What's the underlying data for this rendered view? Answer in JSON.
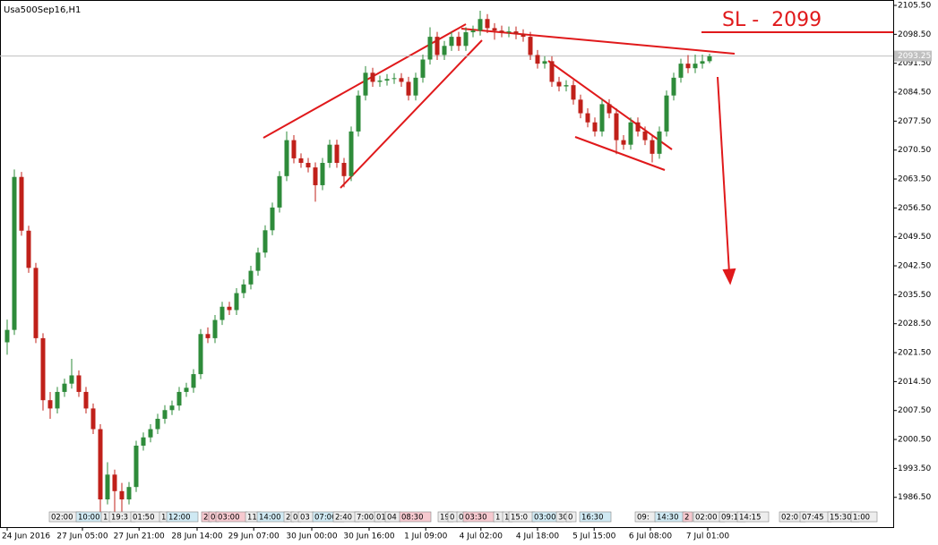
{
  "chart_data": {
    "type": "candlestick",
    "title": "Usa500Sep16,H1",
    "ylim": [
      1979.3,
      2106.8
    ],
    "yticks": [
      {
        "value": 1986.5,
        "label": "1986.50"
      },
      {
        "value": 1993.5,
        "label": "1993.50"
      },
      {
        "value": 2000.5,
        "label": "2000.50"
      },
      {
        "value": 2007.5,
        "label": "2007.50"
      },
      {
        "value": 2014.5,
        "label": "2014.50"
      },
      {
        "value": 2021.5,
        "label": "2021.50"
      },
      {
        "value": 2028.5,
        "label": "2028.50"
      },
      {
        "value": 2035.5,
        "label": "2035.50"
      },
      {
        "value": 2042.5,
        "label": "2042.50"
      },
      {
        "value": 2049.5,
        "label": "2049.50"
      },
      {
        "value": 2056.5,
        "label": "2056.50"
      },
      {
        "value": 2063.5,
        "label": "2063.50"
      },
      {
        "value": 2070.5,
        "label": "2070.50"
      },
      {
        "value": 2077.5,
        "label": "2077.50"
      },
      {
        "value": 2084.5,
        "label": "2084.50"
      },
      {
        "value": 2091.5,
        "label": "2091.50"
      },
      {
        "value": 2098.5,
        "label": "2098.50"
      },
      {
        "value": 2105.5,
        "label": "2105.50"
      }
    ],
    "xticks": [
      {
        "value": 0,
        "label": "24 Jun 2016"
      },
      {
        "value": 10.5,
        "label": "27 Jun 05:00"
      },
      {
        "value": 18.4,
        "label": "27 Jun 21:00"
      },
      {
        "value": 26.5,
        "label": "28 Jun 14:00"
      },
      {
        "value": 34.4,
        "label": "29 Jun 07:00"
      },
      {
        "value": 42.5,
        "label": "30 Jun 00:00"
      },
      {
        "value": 50.5,
        "label": "30 Jun 16:00"
      },
      {
        "value": 58.4,
        "label": "1 Jul 09:00"
      },
      {
        "value": 66.1,
        "label": "4 Jul 02:00"
      },
      {
        "value": 74,
        "label": "4 Jul 18:00"
      },
      {
        "value": 81.9,
        "label": "5 Jul 15:00"
      },
      {
        "value": 89.75,
        "label": "6 Jul 08:00"
      },
      {
        "value": 97.75,
        "label": "7 Jul 01:00"
      }
    ],
    "up_color": "#2e8b3a",
    "down_color": "#c0201a",
    "open": [
      2024,
      2027,
      2064,
      2051,
      2042,
      2025,
      2010,
      2008,
      2012,
      2014,
      2016,
      2012,
      2008,
      2003,
      1986,
      1992,
      1988,
      1986,
      1989,
      1999,
      2001,
      2003,
      2005.5,
      2007.6,
      2008.7,
      2012,
      2013,
      2016.3,
      2026,
      2025,
      2029.4,
      2032.6,
      2031.8,
      2035.9,
      2038,
      2041.3,
      2045.7,
      2051.1,
      2056.6,
      2064.2,
      2072.9,
      2068.5,
      2067.4,
      2066.3,
      2062,
      2067.4,
      2071.8,
      2067.4,
      2064.2,
      2075,
      2083.7,
      2089.2,
      2087,
      2087.3,
      2087.7,
      2087.9,
      2087,
      2083.7,
      2088,
      2092.4,
      2097.9,
      2093.5,
      2095.7,
      2097.9,
      2095.7,
      2099,
      2099.4,
      2102.2,
      2100,
      2099.4,
      2099,
      2099.2,
      2098.5,
      2097.9,
      2093.5,
      2091.4,
      2092,
      2087,
      2085.9,
      2086.2,
      2082.7,
      2079.4,
      2077.2,
      2075,
      2081.6,
      2079.4,
      2072.9,
      2071.8,
      2077.2,
      2075,
      2072.9,
      2069.6,
      2075,
      2083.7,
      2088,
      2091.4,
      2090.3,
      2091.4,
      2092
    ],
    "high": [
      2029.5,
      2065.8,
      2065.2,
      2052.2,
      2043.2,
      2026.2,
      2012,
      2013.2,
      2015.2,
      2020,
      2017.2,
      2013.2,
      2009.2,
      2004.2,
      1995,
      1993.2,
      1990,
      1990.2,
      2000.2,
      2002.2,
      2004.2,
      2006.7,
      2008.8,
      2009.9,
      2013.2,
      2014.2,
      2017.5,
      2027.2,
      2027.6,
      2030.6,
      2033.8,
      2033.8,
      2037.1,
      2039.2,
      2042.5,
      2046.9,
      2052.3,
      2057.8,
      2065.4,
      2075,
      2074.1,
      2069.7,
      2068.6,
      2067.5,
      2068.6,
      2073,
      2073,
      2068.6,
      2076.2,
      2084.9,
      2090.8,
      2090.4,
      2088.5,
      2088.9,
      2089.1,
      2089.1,
      2088.2,
      2089.2,
      2093.6,
      2100.2,
      2099.1,
      2096.9,
      2099.1,
      2099.1,
      2100.2,
      2100.6,
      2104.2,
      2103.4,
      2101.2,
      2100.6,
      2100.4,
      2100.4,
      2099.7,
      2099.1,
      2094.7,
      2093.2,
      2093.2,
      2088.2,
      2087.4,
      2087.4,
      2083.9,
      2080.6,
      2078.4,
      2082.8,
      2082.8,
      2080.6,
      2074.1,
      2078.4,
      2078.4,
      2076.2,
      2074.1,
      2076.2,
      2084.9,
      2089.2,
      2092.6,
      2093.5,
      2093.6,
      2093.6,
      2093.8
    ],
    "low": [
      2021,
      2025.8,
      2049.8,
      2040.8,
      2023.8,
      2007.5,
      2005.5,
      2006.8,
      2010.8,
      2012.8,
      2010.8,
      2006.8,
      2001.8,
      1981.5,
      1984.8,
      1982.5,
      1983,
      1984.8,
      1987.8,
      1997.8,
      1999.8,
      2001.8,
      2004.3,
      2006.4,
      2007.5,
      2010.8,
      2011.8,
      2015.1,
      2023.8,
      2023.8,
      2028.2,
      2030.6,
      2030.6,
      2034.7,
      2036.8,
      2040.1,
      2044.5,
      2049.9,
      2055.4,
      2063,
      2067.3,
      2066.2,
      2065.1,
      2058,
      2060.8,
      2066.2,
      2066.2,
      2061.5,
      2063,
      2073.8,
      2082.5,
      2085.8,
      2085.8,
      2086.1,
      2086.5,
      2085.8,
      2082.5,
      2082.5,
      2086.8,
      2091.2,
      2092.3,
      2092.3,
      2094.5,
      2094.5,
      2094.5,
      2097.8,
      2098.2,
      2098.8,
      2097.2,
      2097.8,
      2097.8,
      2097.3,
      2096.7,
      2092.3,
      2090.2,
      2090.2,
      2085.8,
      2084.7,
      2084.7,
      2081.5,
      2078.2,
      2076,
      2073.8,
      2073.8,
      2078.2,
      2069.5,
      2070.6,
      2070.6,
      2073.8,
      2071.7,
      2067.5,
      2068.4,
      2073.8,
      2082.5,
      2086.8,
      2089.1,
      2089.1,
      2090.2,
      2091.5
    ],
    "close": [
      2027,
      2064,
      2051,
      2042,
      2025,
      2010,
      2008,
      2012,
      2014,
      2016,
      2012,
      2008,
      2003,
      1986,
      1992,
      1988,
      1986,
      1989,
      1999,
      2001,
      2003,
      2005.5,
      2007.6,
      2008.7,
      2012,
      2013,
      2016.3,
      2026,
      2025,
      2029.4,
      2032.6,
      2031.8,
      2035.9,
      2038,
      2041.3,
      2045.7,
      2051.1,
      2056.6,
      2064.2,
      2072.9,
      2068.5,
      2067.4,
      2066.3,
      2062,
      2067.4,
      2071.8,
      2067.4,
      2064.2,
      2075,
      2083.7,
      2089.2,
      2087,
      2087.3,
      2087.7,
      2087.9,
      2087,
      2083.7,
      2088,
      2092.4,
      2097.9,
      2093.5,
      2095.7,
      2097.9,
      2095.7,
      2099,
      2099.4,
      2102.2,
      2100,
      2099.4,
      2099,
      2099.2,
      2098.5,
      2097.9,
      2093.5,
      2091.4,
      2092,
      2087,
      2085.9,
      2086.2,
      2082.7,
      2079.4,
      2077.2,
      2075,
      2081.6,
      2079.4,
      2072.9,
      2071.8,
      2077.2,
      2075,
      2072.9,
      2069.6,
      2075,
      2083.7,
      2088,
      2091.4,
      2090.3,
      2091.4,
      2092,
      2093.2
    ],
    "current_price": {
      "value": 2093.25,
      "label": "2093.25"
    },
    "stop_loss": {
      "value": 2099,
      "label": "SL -  2099",
      "color": "#e0191b"
    },
    "events": [
      "02:00",
      "10:00",
      "1",
      "19:3",
      "01:50",
      "1",
      "12:00",
      "2",
      "0",
      "03:00",
      "11",
      "14:00",
      "2",
      "0",
      "03",
      "07:00",
      "2:40",
      "7:00",
      "01",
      "04",
      "08:30",
      "19",
      "0",
      "0",
      "03:30",
      "1",
      "1",
      "15:0",
      "03:00",
      "30",
      "0",
      "16:30",
      "09:",
      "14:30",
      "2",
      "02:00",
      "09:1",
      "14:15",
      "02:0",
      "07:45",
      "15:30",
      "1:00"
    ]
  }
}
